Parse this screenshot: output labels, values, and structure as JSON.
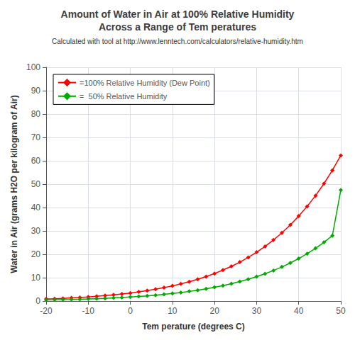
{
  "chart_data": {
    "type": "line",
    "title": "Amount of Water in Air at 100% Relative Humidity\nAcross a Range of Tem peratures",
    "subtitle": "Calculated with tool at http://www.lenntech.com/calculators/relative-humidity.htm",
    "x_label": "Tem perature (degrees C)",
    "y_label": "Water in Air (grams H2O per kilogram of Air)",
    "x": [
      -20,
      -18,
      -16,
      -14,
      -12,
      -10,
      -8,
      -6,
      -4,
      -2,
      0,
      2,
      4,
      6,
      8,
      10,
      12,
      14,
      16,
      18,
      20,
      22,
      24,
      26,
      28,
      30,
      32,
      34,
      36,
      38,
      40,
      42,
      44,
      46,
      48,
      50
    ],
    "series": [
      {
        "name": "=100% Relative Humidity (Dew Point)",
        "color": "#FF0000",
        "marker": "diamond",
        "line_style": "solid",
        "values": [
          0.89,
          1.02,
          1.17,
          1.35,
          1.55,
          1.77,
          2.03,
          2.32,
          2.65,
          3.02,
          3.44,
          3.92,
          4.45,
          5.05,
          5.73,
          6.48,
          7.32,
          8.26,
          9.3,
          10.47,
          11.78,
          13.24,
          14.86,
          16.65,
          18.65,
          20.88,
          23.36,
          26.12,
          29.18,
          32.57,
          36.33,
          40.49,
          45.11,
          50.23,
          55.93,
          62.29
        ]
      },
      {
        "name": "=  50% Relative Humidity",
        "color": "#00AA00",
        "marker": "diamond",
        "line_style": "solid",
        "values": [
          0.45,
          0.51,
          0.59,
          0.68,
          0.78,
          0.89,
          1.02,
          1.16,
          1.33,
          1.51,
          1.72,
          1.96,
          2.23,
          2.53,
          2.87,
          3.24,
          3.66,
          4.13,
          4.65,
          5.24,
          5.89,
          6.62,
          7.43,
          8.33,
          9.33,
          10.44,
          11.68,
          13.06,
          14.59,
          16.29,
          18.17,
          20.25,
          22.56,
          25.12,
          27.97,
          47.5
        ]
      }
    ],
    "xlim": [
      -20,
      50
    ],
    "ylim": [
      0,
      100
    ],
    "xticks": [
      -20,
      -10,
      0,
      10,
      20,
      30,
      40,
      50
    ],
    "yticks": [
      0,
      10,
      20,
      30,
      40,
      50,
      60,
      70,
      80,
      90,
      100
    ],
    "grid": true,
    "legend": "upper left"
  }
}
